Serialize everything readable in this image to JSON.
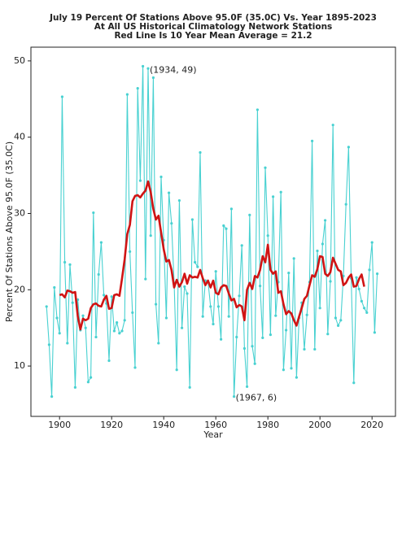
{
  "chart_data": {
    "type": "line",
    "title": [
      "July 19 Percent Of Stations Above 95.0F (35.0C) Vs. Year 1895-2023",
      "At All US Historical Climatology Network Stations",
      "Red Line Is 10 Year Mean  Average = 21.2"
    ],
    "xlabel": "Year",
    "ylabel": "Percent Of Stations Above 95.0F (35.0C)",
    "x": [
      1895,
      1896,
      1897,
      1898,
      1899,
      1900,
      1901,
      1902,
      1903,
      1904,
      1905,
      1906,
      1907,
      1908,
      1909,
      1910,
      1911,
      1912,
      1913,
      1914,
      1915,
      1916,
      1917,
      1918,
      1919,
      1920,
      1921,
      1922,
      1923,
      1924,
      1925,
      1926,
      1927,
      1928,
      1929,
      1930,
      1931,
      1932,
      1933,
      1934,
      1935,
      1936,
      1937,
      1938,
      1939,
      1940,
      1941,
      1942,
      1943,
      1944,
      1945,
      1946,
      1947,
      1948,
      1949,
      1950,
      1951,
      1952,
      1953,
      1954,
      1955,
      1956,
      1957,
      1958,
      1959,
      1960,
      1961,
      1962,
      1963,
      1964,
      1965,
      1966,
      1967,
      1968,
      1969,
      1970,
      1971,
      1972,
      1973,
      1974,
      1975,
      1976,
      1977,
      1978,
      1979,
      1980,
      1981,
      1982,
      1983,
      1984,
      1985,
      1986,
      1987,
      1988,
      1989,
      1990,
      1991,
      1992,
      1993,
      1994,
      1995,
      1996,
      1997,
      1998,
      1999,
      2000,
      2001,
      2002,
      2003,
      2004,
      2005,
      2006,
      2007,
      2008,
      2009,
      2010,
      2011,
      2012,
      2013,
      2014,
      2015,
      2016,
      2017,
      2018,
      2019,
      2020,
      2021,
      2022
    ],
    "series": [
      {
        "color": "#48d1d1",
        "markers": true,
        "values": [
          17.8,
          12.8,
          6,
          20.3,
          16.3,
          14.3,
          45.3,
          23.6,
          13,
          23.3,
          18.3,
          7.2,
          18.7,
          14.7,
          16.6,
          15,
          7.9,
          8.5,
          30.1,
          13.8,
          22,
          26.2,
          19.3,
          18.2,
          10.7,
          19.1,
          14.6,
          15.7,
          14.3,
          14.6,
          16,
          45.6,
          25,
          17,
          9.8,
          46.4,
          34.3,
          49.3,
          21.4,
          49,
          27.1,
          47.8,
          18.1,
          13,
          34.8,
          26.5,
          16.3,
          32.7,
          28.7,
          20.9,
          9.5,
          31.7,
          15,
          20.4,
          19.5,
          7.2,
          29.2,
          23.6,
          23,
          38,
          16.5,
          21.2,
          21.1,
          17.8,
          15.5,
          22.4,
          17.8,
          13.5,
          28.4,
          28,
          16.5,
          30.6,
          6,
          13.8,
          19.2,
          25.8,
          12.3,
          7.3,
          29.8,
          12.6,
          10.3,
          43.6,
          20.5,
          13.7,
          36,
          27.1,
          14.1,
          32.2,
          16.6,
          21,
          32.8,
          9.5,
          14.7,
          22.2,
          9.7,
          24.1,
          8.5,
          16.3,
          18.3,
          12.2,
          16.7,
          21,
          39.5,
          12.2,
          25.1,
          17.6,
          26,
          29.1,
          14.2,
          21.1,
          41.6,
          16.3,
          15.3,
          16,
          21.8,
          31.2,
          38.7,
          21.5,
          7.8,
          21.6,
          20.1,
          18.5,
          17.6,
          17,
          22.6,
          26.2,
          14.4,
          22.1
        ]
      },
      {
        "color": "#d01414",
        "markers": false,
        "values": [
          null,
          null,
          null,
          null,
          null,
          19.3,
          19.4,
          19.0,
          19.9,
          19.8,
          19.6,
          19.7,
          16.5,
          14.8,
          16.2,
          16.0,
          16.2,
          17.6,
          18.1,
          18.2,
          17.9,
          17.8,
          18.7,
          19.2,
          17.5,
          17.6,
          19.3,
          19.4,
          19.2,
          21.5,
          24.0,
          27.3,
          28.5,
          31.6,
          32.3,
          32.4,
          32.1,
          32.6,
          33.0,
          34.2,
          32.8,
          30.6,
          29.2,
          29.7,
          27.5,
          25.3,
          23.7,
          23.9,
          22.6,
          20.3,
          21.3,
          20.4,
          21.0,
          22.1,
          20.8,
          21.9,
          21.6,
          21.7,
          21.6,
          22.6,
          21.5,
          20.6,
          21.2,
          20.3,
          21.2,
          19.6,
          19.4,
          20.3,
          20.6,
          20.5,
          19.5,
          18.6,
          18.8,
          17.7,
          18.0,
          17.8,
          16.0,
          20.0,
          20.9,
          20.1,
          21.8,
          21.6,
          22.6,
          24.4,
          23.6,
          25.9,
          22.6,
          22.1,
          22.4,
          19.6,
          19.8,
          18.1,
          16.8,
          17.2,
          16.9,
          16.0,
          15.3,
          16.5,
          17.6,
          18.8,
          19.2,
          20.6,
          21.9,
          21.7,
          22.7,
          24.4,
          24.3,
          22.1,
          21.8,
          22.3,
          24.2,
          23.4,
          22.6,
          22.4,
          20.6,
          20.9,
          21.6,
          22.0,
          20.4,
          20.5,
          21.4,
          22.0,
          20.4,
          null,
          null,
          null,
          null,
          null
        ]
      }
    ],
    "annotations": [
      {
        "text": "(1934, 49)",
        "x": 1934,
        "y": 49
      },
      {
        "text": "(1967, 6)",
        "x": 1967,
        "y": 6
      }
    ],
    "xlim": [
      1889,
      2029
    ],
    "ylim": [
      3.4,
      51.8
    ],
    "xticks": [
      1900,
      1920,
      1940,
      1960,
      1980,
      2000,
      2020
    ],
    "yticks": [
      10,
      20,
      30,
      40,
      50
    ]
  }
}
